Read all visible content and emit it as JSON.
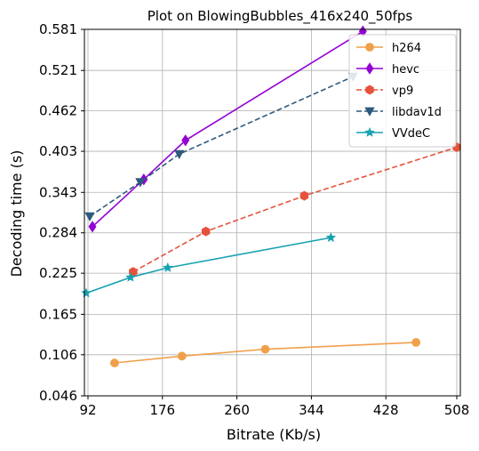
{
  "chart_data": {
    "type": "line",
    "title": "Plot on BlowingBubbles_416x240_50fps",
    "xlabel": "Bitrate (Kb/s)",
    "ylabel": "Decoding time (s)",
    "xlim": [
      88,
      512
    ],
    "ylim": [
      0.046,
      0.581
    ],
    "xticks": [
      92,
      176,
      260,
      344,
      428,
      508
    ],
    "yticks": [
      0.046,
      0.106,
      0.165,
      0.225,
      0.284,
      0.343,
      0.403,
      0.462,
      0.521,
      0.581
    ],
    "grid": true,
    "legend_position": "top-right",
    "series": [
      {
        "name": "h264",
        "color": "#f0a04b",
        "marker": "circle",
        "dash": "solid",
        "x": [
          122,
          198,
          292,
          462
        ],
        "y": [
          0.094,
          0.104,
          0.114,
          0.124
        ]
      },
      {
        "name": "hevc",
        "color": "#9400d3",
        "marker": "diamond",
        "dash": "solid",
        "x": [
          97,
          155,
          202,
          402
        ],
        "y": [
          0.293,
          0.362,
          0.419,
          0.578
        ]
      },
      {
        "name": "vp9",
        "color": "#e5533c",
        "marker": "hexagon",
        "dash": "dashed",
        "x": [
          143,
          225,
          336,
          508
        ],
        "y": [
          0.227,
          0.286,
          0.338,
          0.409
        ]
      },
      {
        "name": "libdav1d",
        "color": "#2e5a7d",
        "marker": "triangle-down",
        "dash": "dashed",
        "x": [
          94,
          151,
          195,
          391
        ],
        "y": [
          0.308,
          0.358,
          0.399,
          0.512
        ]
      },
      {
        "name": "VVdeC",
        "color": "#17a2b0",
        "marker": "star",
        "dash": "solid",
        "x": [
          90,
          140,
          182,
          366
        ],
        "y": [
          0.196,
          0.219,
          0.233,
          0.277
        ]
      }
    ]
  }
}
